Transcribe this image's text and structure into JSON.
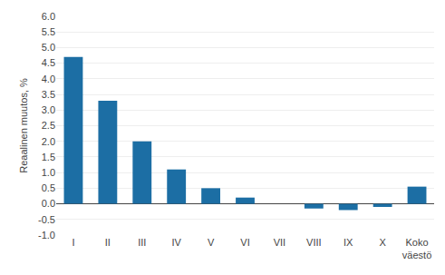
{
  "chart_data": {
    "type": "bar",
    "categories": [
      "I",
      "II",
      "III",
      "IV",
      "V",
      "VI",
      "VII",
      "VIII",
      "IX",
      "X",
      "Koko\nväestö"
    ],
    "values": [
      4.7,
      3.3,
      2.0,
      1.1,
      0.5,
      0.2,
      0.0,
      -0.15,
      -0.2,
      -0.1,
      0.55
    ],
    "color": "#1C6EA4",
    "ylabel": "Reaalinen muutos, %",
    "ylim": [
      -1.0,
      6.0
    ],
    "yticks": [
      {
        "value": -1.0,
        "label": "-1.0"
      },
      -0.5,
      {
        "value": 0.0,
        "label": "0.0"
      },
      0.5,
      {
        "value": 1.0,
        "label": "1.0"
      },
      1.5,
      {
        "value": 2.0,
        "label": "2.0"
      },
      2.5,
      {
        "value": 3.0,
        "label": "3.0"
      },
      3.5,
      {
        "value": 4.0,
        "label": "4.0"
      },
      4.5,
      {
        "value": 5.0,
        "label": "5.0"
      },
      5.5,
      {
        "value": 6.0,
        "label": "6.0"
      }
    ],
    "grid": true
  }
}
